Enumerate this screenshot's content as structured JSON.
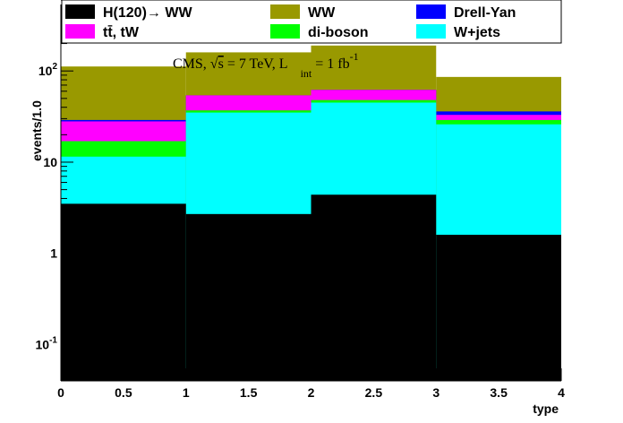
{
  "chart_data": {
    "type": "bar",
    "stacked": true,
    "x_edges": [
      0,
      1,
      2,
      3,
      4
    ],
    "xlim": [
      0,
      4
    ],
    "xlabel": "type",
    "ylabel": "events/1.0",
    "y_scale": "log",
    "ylim": [
      0.04,
      600
    ],
    "x_ticks": [
      {
        "value": 0,
        "label": "0"
      },
      {
        "value": 0.5,
        "label": "0.5"
      },
      {
        "value": 1,
        "label": "1"
      },
      {
        "value": 1.5,
        "label": "1.5"
      },
      {
        "value": 2,
        "label": "2"
      },
      {
        "value": 2.5,
        "label": "2.5"
      },
      {
        "value": 3,
        "label": "3"
      },
      {
        "value": 3.5,
        "label": "3.5"
      },
      {
        "value": 4,
        "label": "4"
      }
    ],
    "y_ticks": [
      {
        "value": 0.1,
        "base": "10",
        "exp": "-1"
      },
      {
        "value": 1,
        "base": "1",
        "exp": ""
      },
      {
        "value": 10,
        "base": "10",
        "exp": ""
      },
      {
        "value": 100,
        "base": "10",
        "exp": "2"
      }
    ],
    "cumulative_series": [
      {
        "name": "WW",
        "color": "#999900",
        "values": [
          112,
          160,
          190,
          86
        ]
      },
      {
        "name": "Drell-Yan",
        "color": "#0000ff",
        "values": [
          29,
          54,
          62,
          36
        ]
      },
      {
        "name": "tt̄, tW",
        "color": "#ff00ff",
        "values": [
          28,
          54,
          62,
          33
        ]
      },
      {
        "name": "di-boson",
        "color": "#00ff00",
        "values": [
          17,
          37,
          48,
          29
        ]
      },
      {
        "name": "W+jets",
        "color": "#00ffff",
        "values": [
          11.5,
          35,
          45,
          26
        ]
      },
      {
        "name": "H(120)→ WW",
        "color": "#000000",
        "values": [
          3.5,
          2.7,
          4.4,
          1.6
        ]
      }
    ],
    "legend": {
      "placement": "top",
      "entries": [
        {
          "name": "H(120)→ WW",
          "color": "#000000"
        },
        {
          "name": "WW",
          "color": "#999900"
        },
        {
          "name": "Drell-Yan",
          "color": "#0000ff"
        },
        {
          "name": "tt̄, tW",
          "color": "#ff00ff"
        },
        {
          "name": "di-boson",
          "color": "#00ff00"
        },
        {
          "name": "W+jets",
          "color": "#00ffff"
        }
      ]
    },
    "annotation": {
      "prefix": "CMS, ",
      "sqrt": "√",
      "s": "s",
      "mid": " = 7 TeV, L",
      "sub": "int",
      "suffix": " = 1 fb",
      "sup": "-1"
    }
  }
}
